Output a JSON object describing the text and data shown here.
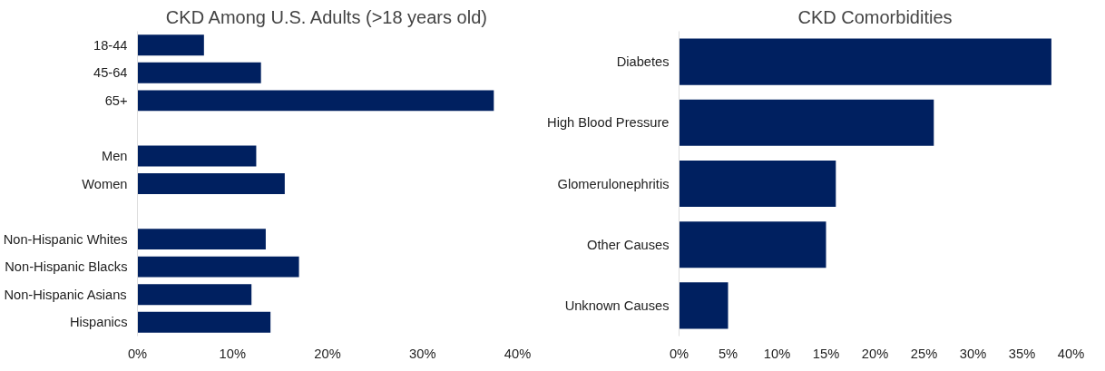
{
  "chart_data": [
    {
      "type": "bar",
      "orientation": "horizontal",
      "title": "CKD Among U.S. Adults (>18 years old)",
      "categories": [
        "18-44",
        "45-64",
        "65+",
        null,
        "Men",
        "Women",
        null,
        "Non-Hispanic Whites",
        "Non-Hispanic Blacks",
        "Non-Hispanic Asians",
        "Hispanics"
      ],
      "values": [
        7,
        13,
        37.5,
        null,
        12.5,
        15.5,
        null,
        13.5,
        17,
        12,
        14
      ],
      "color": "#002060",
      "xlim": [
        0,
        40
      ],
      "xticks": [
        {
          "value": 0,
          "label": "0%"
        },
        {
          "value": 10,
          "label": "10%"
        },
        {
          "value": 20,
          "label": "20%"
        },
        {
          "value": 30,
          "label": "30%"
        },
        {
          "value": 40,
          "label": "40%"
        }
      ],
      "grid": false
    },
    {
      "type": "bar",
      "orientation": "horizontal",
      "title": "CKD Comorbidities",
      "categories": [
        "Diabetes",
        "High Blood Pressure",
        "Glomerulonephritis",
        "Other Causes",
        "Unknown Causes"
      ],
      "values": [
        38,
        26,
        16,
        15,
        5
      ],
      "color": "#002060",
      "xlim": [
        0,
        40
      ],
      "xticks": [
        {
          "value": 0,
          "label": "0%"
        },
        {
          "value": 5,
          "label": "5%"
        },
        {
          "value": 10,
          "label": "10%"
        },
        {
          "value": 15,
          "label": "15%"
        },
        {
          "value": 20,
          "label": "20%"
        },
        {
          "value": 25,
          "label": "25%"
        },
        {
          "value": 30,
          "label": "30%"
        },
        {
          "value": 35,
          "label": "35%"
        },
        {
          "value": 40,
          "label": "40%"
        }
      ],
      "grid": false
    }
  ]
}
